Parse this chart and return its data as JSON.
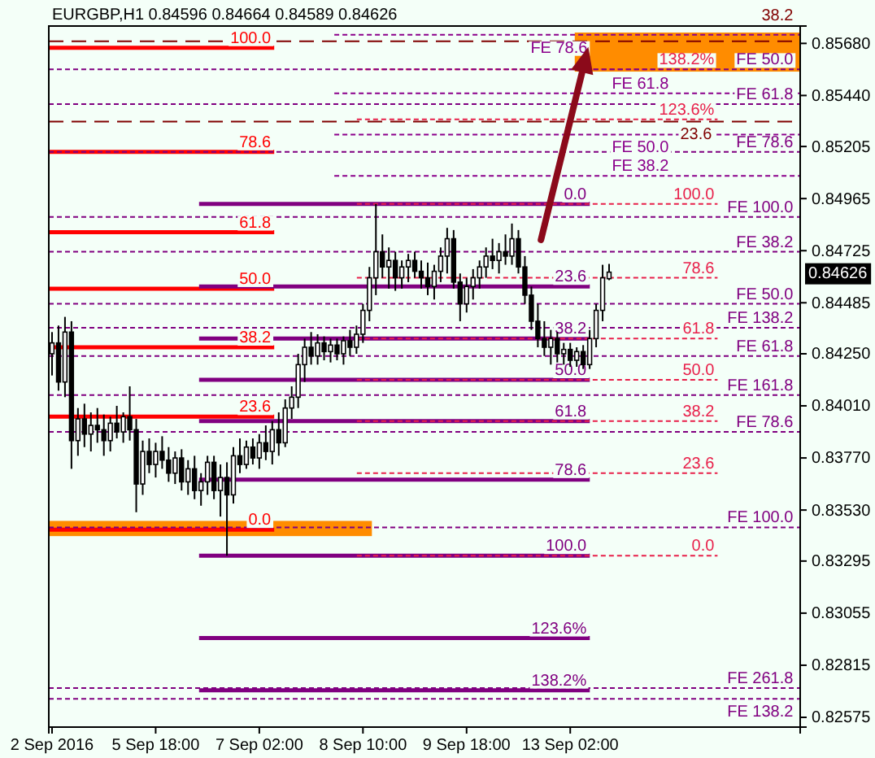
{
  "chart_data": {
    "type": "candlestick",
    "title": "EURGBP,H1  0.84596 0.84664 0.84589 0.84626",
    "color": "#000000",
    "categories": [
      "2 Sep 2016",
      null,
      null,
      null,
      null,
      null,
      null,
      null,
      null,
      null,
      null,
      null,
      null,
      null,
      null,
      null,
      "5 Sep 18:00",
      null,
      null,
      null,
      null,
      null,
      null,
      null,
      null,
      null,
      null,
      null,
      null,
      null,
      null,
      null,
      "7 Sep 02:00",
      null,
      null,
      null,
      null,
      null,
      null,
      null,
      null,
      null,
      null,
      null,
      null,
      null,
      null,
      null,
      "8 Sep 10:00",
      null,
      null,
      null,
      null,
      null,
      null,
      null,
      null,
      null,
      null,
      null,
      null,
      null,
      null,
      null,
      "9 Sep 18:00",
      null,
      null,
      null,
      null,
      null,
      null,
      null,
      null,
      null,
      null,
      null,
      null,
      null,
      null,
      null,
      "13 Sep 02:00",
      null,
      null,
      null,
      null,
      null,
      null,
      null,
      null,
      null,
      null,
      null,
      null,
      null,
      null,
      null,
      null,
      null,
      null,
      null,
      null,
      null,
      null,
      null,
      null,
      null,
      null,
      null,
      null,
      null,
      null,
      null,
      null,
      null,
      null,
      null
    ],
    "ohlc": [
      [
        0.8425,
        0.8435,
        0.8415,
        0.843
      ],
      [
        0.843,
        0.8438,
        0.8408,
        0.8412
      ],
      [
        0.8412,
        0.8442,
        0.8405,
        0.8435
      ],
      [
        0.8435,
        0.844,
        0.8372,
        0.8385
      ],
      [
        0.8385,
        0.84,
        0.8378,
        0.8395
      ],
      [
        0.8395,
        0.8402,
        0.8382,
        0.8388
      ],
      [
        0.8388,
        0.8398,
        0.838,
        0.8392
      ],
      [
        0.8392,
        0.84,
        0.8384,
        0.839
      ],
      [
        0.839,
        0.8397,
        0.8378,
        0.8385
      ],
      [
        0.8385,
        0.8396,
        0.838,
        0.8393
      ],
      [
        0.8393,
        0.8401,
        0.8386,
        0.8389
      ],
      [
        0.8389,
        0.8398,
        0.8384,
        0.8396
      ],
      [
        0.8396,
        0.841,
        0.8385,
        0.839
      ],
      [
        0.839,
        0.8395,
        0.8352,
        0.8365
      ],
      [
        0.8365,
        0.8385,
        0.836,
        0.838
      ],
      [
        0.838,
        0.8386,
        0.837,
        0.8374
      ],
      [
        0.8374,
        0.8384,
        0.8368,
        0.838
      ],
      [
        0.838,
        0.8387,
        0.8372,
        0.8376
      ],
      [
        0.8376,
        0.8382,
        0.8366,
        0.837
      ],
      [
        0.837,
        0.838,
        0.8365,
        0.8377
      ],
      [
        0.8377,
        0.8381,
        0.8362,
        0.8366
      ],
      [
        0.8366,
        0.8376,
        0.836,
        0.8372
      ],
      [
        0.8372,
        0.8378,
        0.8358,
        0.8362
      ],
      [
        0.8362,
        0.837,
        0.8355,
        0.8366
      ],
      [
        0.8366,
        0.8378,
        0.836,
        0.8375
      ],
      [
        0.8375,
        0.8378,
        0.8358,
        0.8362
      ],
      [
        0.8362,
        0.8374,
        0.835,
        0.8368
      ],
      [
        0.8368,
        0.8375,
        0.8332,
        0.836
      ],
      [
        0.836,
        0.8382,
        0.8356,
        0.8378
      ],
      [
        0.8378,
        0.8386,
        0.837,
        0.8374
      ],
      [
        0.8374,
        0.8385,
        0.8372,
        0.8382
      ],
      [
        0.8382,
        0.8386,
        0.8374,
        0.8377
      ],
      [
        0.8377,
        0.8388,
        0.8372,
        0.8384
      ],
      [
        0.8384,
        0.8392,
        0.8376,
        0.838
      ],
      [
        0.838,
        0.8394,
        0.8374,
        0.839
      ],
      [
        0.839,
        0.8398,
        0.8378,
        0.8384
      ],
      [
        0.8384,
        0.8404,
        0.8382,
        0.84
      ],
      [
        0.84,
        0.841,
        0.8395,
        0.8405
      ],
      [
        0.8405,
        0.8425,
        0.84,
        0.842
      ],
      [
        0.842,
        0.8432,
        0.8412,
        0.8428
      ],
      [
        0.8428,
        0.8435,
        0.842,
        0.8424
      ],
      [
        0.8424,
        0.8434,
        0.842,
        0.843
      ],
      [
        0.843,
        0.8433,
        0.8422,
        0.8426
      ],
      [
        0.8426,
        0.8432,
        0.8421,
        0.8429
      ],
      [
        0.8429,
        0.8432,
        0.8422,
        0.8425
      ],
      [
        0.8425,
        0.8433,
        0.842,
        0.8431
      ],
      [
        0.8431,
        0.8436,
        0.8424,
        0.8428
      ],
      [
        0.8428,
        0.8438,
        0.8425,
        0.8434
      ],
      [
        0.8434,
        0.8448,
        0.843,
        0.8445
      ],
      [
        0.8445,
        0.8465,
        0.844,
        0.846
      ],
      [
        0.846,
        0.8494,
        0.8452,
        0.8472
      ],
      [
        0.8472,
        0.848,
        0.846,
        0.8465
      ],
      [
        0.8465,
        0.8474,
        0.8455,
        0.8468
      ],
      [
        0.8468,
        0.8472,
        0.8454,
        0.846
      ],
      [
        0.846,
        0.8468,
        0.8455,
        0.8465
      ],
      [
        0.8465,
        0.8471,
        0.8458,
        0.8468
      ],
      [
        0.8468,
        0.8472,
        0.846,
        0.8463
      ],
      [
        0.8463,
        0.8468,
        0.8455,
        0.846
      ],
      [
        0.846,
        0.8467,
        0.8452,
        0.8456
      ],
      [
        0.8456,
        0.8466,
        0.845,
        0.8463
      ],
      [
        0.8463,
        0.8474,
        0.8458,
        0.847
      ],
      [
        0.847,
        0.8483,
        0.8462,
        0.8478
      ],
      [
        0.8478,
        0.8482,
        0.8455,
        0.8458
      ],
      [
        0.8458,
        0.8462,
        0.844,
        0.8448
      ],
      [
        0.8448,
        0.846,
        0.8444,
        0.8456
      ],
      [
        0.8456,
        0.8464,
        0.845,
        0.846
      ],
      [
        0.846,
        0.8468,
        0.8455,
        0.8465
      ],
      [
        0.8465,
        0.8474,
        0.846,
        0.847
      ],
      [
        0.847,
        0.8478,
        0.8464,
        0.8468
      ],
      [
        0.8468,
        0.8476,
        0.8462,
        0.8472
      ],
      [
        0.8472,
        0.848,
        0.8466,
        0.847
      ],
      [
        0.847,
        0.8485,
        0.8466,
        0.8478
      ],
      [
        0.8478,
        0.8482,
        0.8462,
        0.8465
      ],
      [
        0.8465,
        0.847,
        0.8448,
        0.8452
      ],
      [
        0.8452,
        0.8456,
        0.8436,
        0.844
      ],
      [
        0.844,
        0.8448,
        0.8428,
        0.8432
      ],
      [
        0.8432,
        0.844,
        0.8424,
        0.8428
      ],
      [
        0.8428,
        0.8436,
        0.842,
        0.8432
      ],
      [
        0.8432,
        0.8435,
        0.8421,
        0.8425
      ],
      [
        0.8425,
        0.843,
        0.842,
        0.8427
      ],
      [
        0.8427,
        0.843,
        0.8419,
        0.8422
      ],
      [
        0.8422,
        0.8428,
        0.8419,
        0.8426
      ],
      [
        0.8426,
        0.8429,
        0.8418,
        0.842
      ],
      [
        0.842,
        0.8436,
        0.8418,
        0.8432
      ],
      [
        0.8432,
        0.8448,
        0.8428,
        0.8445
      ],
      [
        0.8445,
        0.8466,
        0.844,
        0.846
      ],
      [
        0.84596,
        0.84664,
        0.84589,
        0.84626
      ],
      null,
      null,
      null,
      null,
      null,
      null,
      null,
      null,
      null,
      null,
      null,
      null,
      null,
      null,
      null,
      null,
      null,
      null,
      null,
      null,
      null,
      null,
      null,
      null,
      null,
      null,
      null,
      null,
      null
    ],
    "ylim": [
      0.8253,
      0.8576
    ],
    "yticks": [
      {
        "value": 0.8568,
        "label": "0.85680"
      },
      {
        "value": 0.8544,
        "label": "0.85440"
      },
      {
        "value": 0.85205,
        "label": "0.85205"
      },
      {
        "value": 0.84965,
        "label": "0.84965"
      },
      {
        "value": 0.84725,
        "label": "0.84725"
      },
      {
        "value": 0.84485,
        "label": "0.84485"
      },
      {
        "value": 0.8425,
        "label": "0.84250"
      },
      {
        "value": 0.8401,
        "label": "0.84010"
      },
      {
        "value": 0.8377,
        "label": "0.83770"
      },
      {
        "value": 0.8353,
        "label": "0.83530"
      },
      {
        "value": 0.83295,
        "label": "0.83295"
      },
      {
        "value": 0.83055,
        "label": "0.83055"
      },
      {
        "value": 0.82815,
        "label": "0.82815"
      },
      {
        "value": 0.82575,
        "label": "0.82575"
      }
    ],
    "bands": [
      {
        "axis": "y",
        "from": 0.8555,
        "to": 0.8573,
        "color": "#ff8c00"
      },
      {
        "axis": "y",
        "from": 0.8341,
        "to": 0.8348,
        "color": "#ff8c00"
      }
    ],
    "ref_lines": [
      {
        "axis": "y",
        "value": 0.8566,
        "color": "#ff0000",
        "line_style": "solid"
      },
      {
        "axis": "y",
        "value": 0.8518,
        "color": "#ff0000",
        "line_style": "solid"
      },
      {
        "axis": "y",
        "value": 0.8481,
        "color": "#ff0000",
        "line_style": "solid"
      },
      {
        "axis": "y",
        "value": 0.8455,
        "color": "#ff0000",
        "line_style": "solid"
      },
      {
        "axis": "y",
        "value": 0.8428,
        "color": "#ff0000",
        "line_style": "solid"
      },
      {
        "axis": "y",
        "value": 0.8396,
        "color": "#ff0000",
        "line_style": "solid"
      },
      {
        "axis": "y",
        "value": 0.8344,
        "color": "#ff0000",
        "line_style": "solid"
      },
      {
        "axis": "y",
        "value": 0.8494,
        "color": "#800080",
        "line_style": "solid"
      },
      {
        "axis": "y",
        "value": 0.8456,
        "color": "#800080",
        "line_style": "solid"
      },
      {
        "axis": "y",
        "value": 0.8432,
        "color": "#800080",
        "line_style": "solid"
      },
      {
        "axis": "y",
        "value": 0.8413,
        "color": "#800080",
        "line_style": "solid"
      },
      {
        "axis": "y",
        "value": 0.8394,
        "color": "#800080",
        "line_style": "solid"
      },
      {
        "axis": "y",
        "value": 0.8367,
        "color": "#800080",
        "line_style": "solid"
      },
      {
        "axis": "y",
        "value": 0.8332,
        "color": "#800080",
        "line_style": "solid"
      },
      {
        "axis": "y",
        "value": 0.8294,
        "color": "#800080",
        "line_style": "solid"
      },
      {
        "axis": "y",
        "value": 0.827,
        "color": "#800080",
        "line_style": "solid"
      },
      {
        "axis": "y",
        "value": 0.8556,
        "color": "#e8204a",
        "line_style": "dashed"
      },
      {
        "axis": "y",
        "value": 0.8533,
        "color": "#e8204a",
        "line_style": "dashed"
      },
      {
        "axis": "y",
        "value": 0.8494,
        "color": "#e8204a",
        "line_style": "dashed"
      },
      {
        "axis": "y",
        "value": 0.846,
        "color": "#e8204a",
        "line_style": "dashed"
      },
      {
        "axis": "y",
        "value": 0.8432,
        "color": "#e8204a",
        "line_style": "dashed"
      },
      {
        "axis": "y",
        "value": 0.8413,
        "color": "#e8204a",
        "line_style": "dashed"
      },
      {
        "axis": "y",
        "value": 0.8394,
        "color": "#e8204a",
        "line_style": "dashed"
      },
      {
        "axis": "y",
        "value": 0.837,
        "color": "#e8204a",
        "line_style": "dashed"
      },
      {
        "axis": "y",
        "value": 0.8332,
        "color": "#e8204a",
        "line_style": "dashed"
      },
      {
        "axis": "y",
        "value": 0.8572,
        "color": "#8b008b",
        "line_style": "dashed"
      },
      {
        "axis": "y",
        "value": 0.8545,
        "color": "#8b008b",
        "line_style": "dashed"
      },
      {
        "axis": "y",
        "value": 0.8526,
        "color": "#8b008b",
        "line_style": "dashed"
      },
      {
        "axis": "y",
        "value": 0.8507,
        "color": "#8b008b",
        "line_style": "dashed"
      },
      {
        "axis": "y",
        "value": 0.8556,
        "color": "#800080",
        "line_style": "dashed"
      },
      {
        "axis": "y",
        "value": 0.854,
        "color": "#800080",
        "line_style": "dashed"
      },
      {
        "axis": "y",
        "value": 0.8518,
        "color": "#800080",
        "line_style": "dashed"
      },
      {
        "axis": "y",
        "value": 0.8488,
        "color": "#800080",
        "line_style": "dashed"
      },
      {
        "axis": "y",
        "value": 0.8472,
        "color": "#800080",
        "line_style": "dashed"
      },
      {
        "axis": "y",
        "value": 0.8448,
        "color": "#800080",
        "line_style": "dashed"
      },
      {
        "axis": "y",
        "value": 0.8437,
        "color": "#800080",
        "line_style": "dashed"
      },
      {
        "axis": "y",
        "value": 0.8424,
        "color": "#800080",
        "line_style": "dashed"
      },
      {
        "axis": "y",
        "value": 0.8406,
        "color": "#800080",
        "line_style": "dashed"
      },
      {
        "axis": "y",
        "value": 0.8389,
        "color": "#800080",
        "line_style": "dashed"
      },
      {
        "axis": "y",
        "value": 0.8345,
        "color": "#800080",
        "line_style": "dashed"
      },
      {
        "axis": "y",
        "value": 0.8271,
        "color": "#800080",
        "line_style": "dashed"
      },
      {
        "axis": "y",
        "value": 0.8266,
        "color": "#800080",
        "line_style": "dashed"
      },
      {
        "axis": "y",
        "value": 0.8569,
        "color": "#800000",
        "line_style": "dashed"
      },
      {
        "axis": "y",
        "value": 0.8532,
        "color": "#800000",
        "line_style": "dashed"
      }
    ],
    "annotations": [
      {
        "text": "100.0",
        "y": 0.8566
      },
      {
        "text": "78.6",
        "y": 0.8518
      },
      {
        "text": "61.8",
        "y": 0.8481
      },
      {
        "text": "50.0",
        "y": 0.8455
      },
      {
        "text": "38.2",
        "y": 0.8428
      },
      {
        "text": "23.6",
        "y": 0.8396
      },
      {
        "text": "0.0",
        "y": 0.8344
      },
      {
        "text": "0.0",
        "y": 0.8494
      },
      {
        "text": "23.6",
        "y": 0.8456
      },
      {
        "text": "38.2",
        "y": 0.8432
      },
      {
        "text": "50.0",
        "y": 0.8413
      },
      {
        "text": "61.8",
        "y": 0.8394
      },
      {
        "text": "78.6",
        "y": 0.8367
      },
      {
        "text": "100.0",
        "y": 0.8332
      },
      {
        "text": "123.6%",
        "y": 0.8294
      },
      {
        "text": "138.2%",
        "y": 0.827
      },
      {
        "text": "138.2%",
        "y": 0.8556
      },
      {
        "text": "123.6%",
        "y": 0.8533
      },
      {
        "text": "100.0",
        "y": 0.8494
      },
      {
        "text": "78.6",
        "y": 0.846
      },
      {
        "text": "61.8",
        "y": 0.8432
      },
      {
        "text": "50.0",
        "y": 0.8413
      },
      {
        "text": "38.2",
        "y": 0.8394
      },
      {
        "text": "23.6",
        "y": 0.837
      },
      {
        "text": "0.0",
        "y": 0.8332
      },
      {
        "text": "FE 78.6",
        "y": 0.8572
      },
      {
        "text": "FE 61.8",
        "y": 0.8545
      },
      {
        "text": "FE 50.0",
        "y": 0.8526
      },
      {
        "text": "FE 38.2",
        "y": 0.8507
      },
      {
        "text": "FE 50.0",
        "y": 0.8556
      },
      {
        "text": "FE 61.8",
        "y": 0.854
      },
      {
        "text": "FE 78.6",
        "y": 0.8518
      },
      {
        "text": "FE 100.0",
        "y": 0.8488
      },
      {
        "text": "FE 38.2",
        "y": 0.8472
      },
      {
        "text": "FE 50.0",
        "y": 0.8448
      },
      {
        "text": "FE 138.2",
        "y": 0.8437
      },
      {
        "text": "FE 61.8",
        "y": 0.8424
      },
      {
        "text": "FE 161.8",
        "y": 0.8406
      },
      {
        "text": "FE 78.6",
        "y": 0.8389
      },
      {
        "text": "FE 100.0",
        "y": 0.8345
      },
      {
        "text": "FE 261.8",
        "y": 0.8271
      },
      {
        "text": "FE 138.2",
        "y": 0.8266
      },
      {
        "text": "38.2",
        "y": 0.8569
      },
      {
        "text": "23.6",
        "y": 0.8532
      },
      {
        "text": "0.84626",
        "y": 0.84626
      }
    ]
  }
}
